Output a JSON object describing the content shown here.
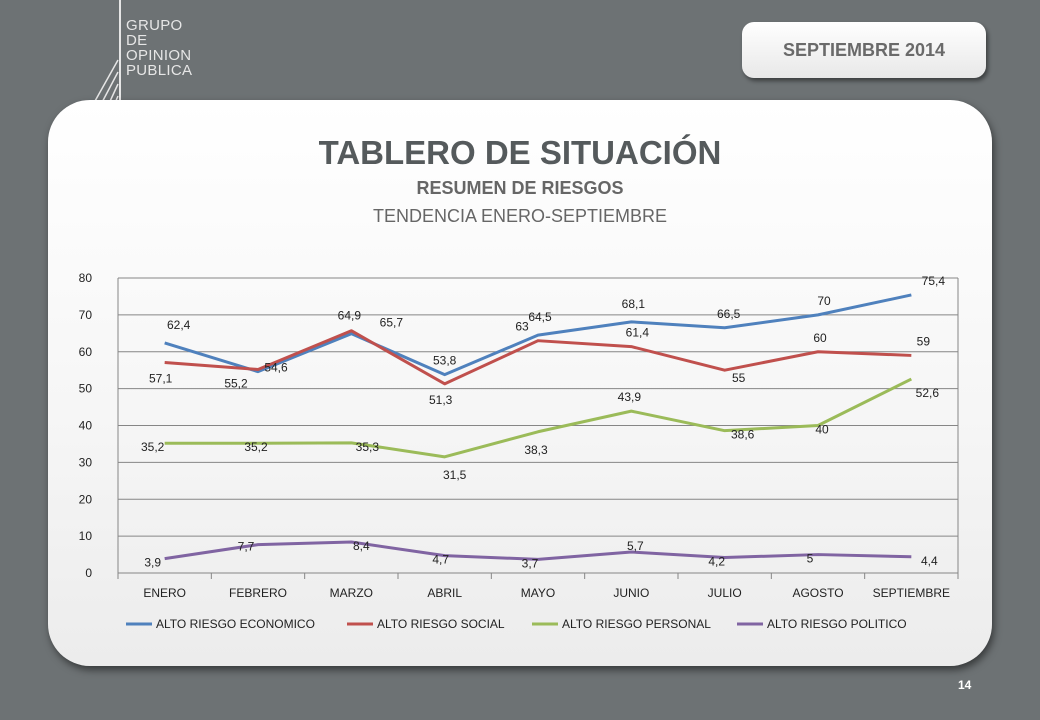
{
  "header": {
    "logo_lines": [
      "GRUPO",
      "DE",
      "OPINION",
      "PUBLICA"
    ],
    "date_label": "SEPTIEMBRE  2014"
  },
  "card": {
    "title": "TABLERO DE SITUACIÓN",
    "subtitle": "RESUMEN DE RIESGOS",
    "subtitle2": "TENDENCIA ENERO-SEPTIEMBRE"
  },
  "footer": {
    "page_number": "14"
  },
  "chart_data": {
    "type": "line",
    "categories": [
      "ENERO",
      "FEBRERO",
      "MARZO",
      "ABRIL",
      "MAYO",
      "JUNIO",
      "JULIO",
      "AGOSTO",
      "SEPTIEMBRE"
    ],
    "ylim": [
      0,
      80
    ],
    "yticks": [
      "0",
      "10",
      "20",
      "30",
      "40",
      "50",
      "60",
      "70",
      "80"
    ],
    "grid": true,
    "legend_position": "bottom",
    "series": [
      {
        "name": "ALTO RIESGO ECONOMICO",
        "color": "#4f81bd",
        "values": [
          62.4,
          54.6,
          64.9,
          53.8,
          64.5,
          68.1,
          66.5,
          70,
          75.4
        ],
        "labels": [
          "62,4",
          "54,6",
          "64,9",
          "53,8",
          "64,5",
          "68,1",
          "66,5",
          "70",
          "75,4"
        ]
      },
      {
        "name": "ALTO RIESGO SOCIAL",
        "color": "#c0504d",
        "values": [
          57.1,
          55.2,
          65.7,
          51.3,
          63,
          61.4,
          55,
          60,
          59
        ],
        "labels": [
          "57,1",
          "55,2",
          "65,7",
          "51,3",
          "63",
          "61,4",
          "55",
          "60",
          "59"
        ]
      },
      {
        "name": "ALTO RIESGO PERSONAL",
        "color": "#9bbb59",
        "values": [
          35.2,
          35.2,
          35.3,
          31.5,
          38.3,
          43.9,
          38.6,
          40,
          52.6
        ],
        "labels": [
          "35,2",
          "35,2",
          "35,3",
          "31,5",
          "38,3",
          "43,9",
          "38,6",
          "40",
          "52,6"
        ]
      },
      {
        "name": "ALTO RIESGO POLITICO",
        "color": "#8064a2",
        "values": [
          3.9,
          7.7,
          8.4,
          4.7,
          3.7,
          5.7,
          4.2,
          5,
          4.4
        ],
        "labels": [
          "3,9",
          "7,7",
          "8,4",
          "4,7",
          "3,7",
          "5,7",
          "4,2",
          "5",
          "4,4"
        ]
      }
    ]
  }
}
